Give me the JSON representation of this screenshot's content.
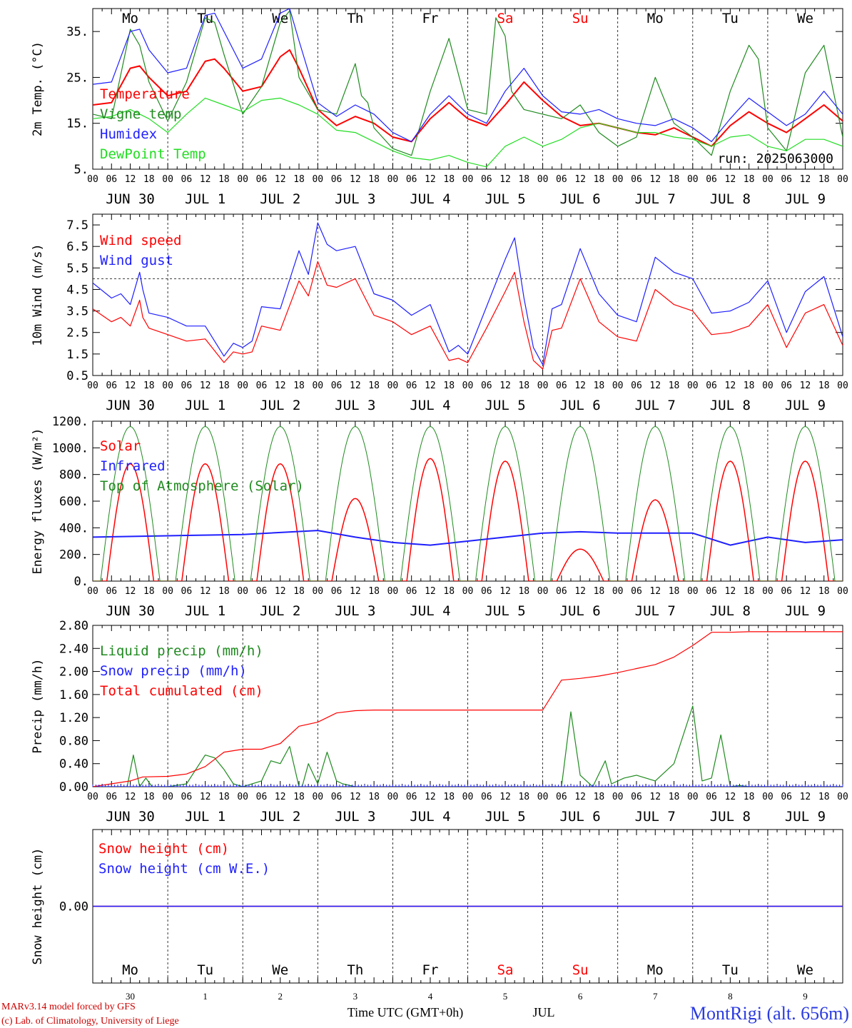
{
  "colors": {
    "red": "#ff0000",
    "green": "#1f8a1f",
    "blue": "#1f1fff",
    "lightgreen": "#22dd22",
    "weekend": "#ff0000",
    "text": "#000000"
  },
  "days_of_week": [
    "Mo",
    "Tu",
    "We",
    "Th",
    "Fr",
    "Sa",
    "Su",
    "Mo",
    "Tu",
    "We"
  ],
  "weekend_index": [
    5,
    6
  ],
  "date_labels": [
    "JUN 30",
    "JUL  1",
    "JUL  2",
    "JUL  3",
    "JUL  4",
    "JUL  5",
    "JUL  6",
    "JUL  7",
    "JUL  8",
    "JUL  9"
  ],
  "hour_labels": [
    "00",
    "06",
    "12",
    "18"
  ],
  "final_hour": "00",
  "day_numbers": [
    "30",
    "1",
    "2",
    "3",
    "4",
    "5",
    "6",
    "7",
    "8",
    "9"
  ],
  "run_label": "run: 2025063000",
  "footer": {
    "left1": "MARv3.14 model forced by GFS",
    "left2": "(c) Lab. of Climatology, University of Liege",
    "xtitle": "Time UTC (GMT+0h)",
    "month": "JUL",
    "station": "MontRigi (alt. 656m)"
  },
  "chart_data": [
    {
      "type": "line",
      "ylabel": "2m Temp. (°C)",
      "ylim": [
        5,
        40
      ],
      "yticks": [
        "5.",
        "15.",
        "25.",
        "35."
      ],
      "x_unit": "hours since 00 UTC JUN 30",
      "series": [
        {
          "name": "Temperature",
          "color": "red",
          "x": [
            0,
            6,
            12,
            15,
            18,
            24,
            30,
            36,
            39,
            42,
            48,
            54,
            60,
            63,
            66,
            72,
            78,
            84,
            90,
            96,
            102,
            108,
            114,
            120,
            126,
            132,
            138,
            144,
            150,
            156,
            162,
            168,
            174,
            180,
            186,
            192,
            198,
            204,
            210,
            216,
            222,
            228,
            234,
            240
          ],
          "y": [
            19,
            19.5,
            27,
            27.5,
            25,
            21,
            22,
            28.5,
            29,
            27,
            22,
            23,
            29.5,
            31,
            27,
            18,
            14.5,
            16.5,
            15,
            12,
            11,
            16,
            19.5,
            16,
            14.5,
            19,
            24,
            20,
            16.5,
            14.5,
            15,
            14,
            13,
            12.5,
            14,
            12,
            10,
            14.5,
            17.5,
            15,
            13,
            16,
            19,
            15.5
          ]
        },
        {
          "name": "Vigne temp",
          "color": "green",
          "x": [
            0,
            6,
            12,
            15,
            18,
            24,
            30,
            36,
            39,
            42,
            48,
            54,
            60,
            63,
            66,
            72,
            78,
            84,
            86,
            88,
            90,
            96,
            102,
            108,
            114,
            120,
            126,
            129,
            132,
            134,
            138,
            144,
            150,
            156,
            162,
            168,
            174,
            180,
            186,
            192,
            198,
            204,
            210,
            213,
            216,
            222,
            228,
            234,
            240
          ],
          "y": [
            17,
            16,
            35.5,
            32,
            24,
            15.5,
            24,
            38,
            37,
            30,
            17,
            23,
            37,
            39.5,
            25,
            18,
            17,
            28,
            21,
            19.5,
            14,
            9.5,
            8,
            22,
            33.5,
            18,
            17,
            38,
            34,
            22,
            18,
            17,
            16,
            19,
            13,
            10,
            12,
            25,
            15,
            12,
            8,
            22,
            32,
            29,
            14,
            9,
            26,
            32,
            12
          ]
        },
        {
          "name": "Humidex",
          "color": "blue",
          "x": [
            0,
            6,
            12,
            15,
            18,
            24,
            30,
            36,
            39,
            42,
            48,
            54,
            60,
            63,
            66,
            72,
            78,
            84,
            90,
            96,
            102,
            108,
            114,
            120,
            126,
            132,
            138,
            144,
            150,
            156,
            162,
            168,
            174,
            180,
            186,
            192,
            198,
            204,
            210,
            216,
            222,
            228,
            234,
            240
          ],
          "y": [
            23.5,
            24,
            35,
            35.5,
            31,
            26,
            27,
            38.5,
            39,
            35,
            27,
            29,
            39,
            40,
            33,
            19.5,
            16.5,
            19,
            17,
            13,
            11,
            17,
            21,
            17,
            15,
            22,
            27,
            21,
            17.5,
            17,
            18,
            16,
            15,
            14.5,
            16,
            14,
            11,
            16,
            20.5,
            17.5,
            14.5,
            17,
            22,
            17
          ]
        },
        {
          "name": "DewPoint Temp",
          "color": "lightgreen",
          "x": [
            0,
            6,
            12,
            18,
            24,
            30,
            36,
            42,
            48,
            54,
            60,
            66,
            72,
            78,
            84,
            90,
            96,
            102,
            108,
            114,
            120,
            126,
            132,
            138,
            144,
            150,
            156,
            162,
            168,
            174,
            180,
            186,
            192,
            198,
            204,
            210,
            216,
            222,
            228,
            234,
            240
          ],
          "y": [
            16,
            16.5,
            18,
            16,
            13,
            17,
            20.5,
            19,
            17.5,
            20,
            20.5,
            19,
            17,
            13.5,
            13,
            11,
            9,
            7.5,
            7,
            8,
            6.5,
            5.5,
            10,
            12,
            10,
            11.5,
            14,
            15,
            14,
            13,
            13,
            12,
            11.5,
            10,
            12,
            12.5,
            10,
            9,
            11.5,
            11.5,
            10
          ]
        }
      ]
    },
    {
      "type": "line",
      "ylabel": "10m Wind (m/s)",
      "ylim": [
        0.5,
        8
      ],
      "yticks": [
        "0.5",
        "1.5",
        "2.5",
        "3.5",
        "4.5",
        "5.5",
        "6.5",
        "7.5"
      ],
      "reference_line": 5,
      "x_unit": "hours since 00 UTC JUN 30",
      "series": [
        {
          "name": "Wind speed",
          "color": "red",
          "x": [
            0,
            6,
            9,
            12,
            15,
            16,
            18,
            24,
            30,
            36,
            42,
            45,
            48,
            51,
            54,
            60,
            66,
            69,
            72,
            75,
            78,
            84,
            90,
            96,
            102,
            108,
            114,
            117,
            120,
            126,
            132,
            135,
            138,
            141,
            144,
            147,
            150,
            156,
            162,
            168,
            174,
            180,
            186,
            192,
            198,
            204,
            210,
            216,
            222,
            228,
            234,
            240
          ],
          "y": [
            3.6,
            3,
            3.2,
            2.8,
            4,
            3.2,
            2.7,
            2.4,
            2.1,
            2.2,
            1.1,
            1.6,
            1.5,
            1.6,
            2.8,
            2.6,
            4.9,
            4.2,
            5.8,
            4.7,
            4.6,
            5,
            3.3,
            3,
            2.4,
            2.8,
            1.2,
            1.3,
            1.1,
            2.7,
            4.4,
            5.3,
            3,
            1.2,
            0.8,
            2.6,
            2.7,
            5,
            3,
            2.3,
            2.1,
            4.5,
            3.8,
            3.5,
            2.4,
            2.5,
            2.8,
            3.8,
            1.8,
            3.4,
            3.8,
            1.9
          ]
        },
        {
          "name": "Wind gust",
          "color": "blue",
          "x": [
            0,
            6,
            9,
            12,
            15,
            16,
            18,
            24,
            30,
            36,
            42,
            45,
            48,
            51,
            54,
            60,
            66,
            69,
            72,
            75,
            78,
            84,
            90,
            96,
            102,
            108,
            114,
            117,
            120,
            126,
            132,
            135,
            138,
            141,
            144,
            147,
            150,
            156,
            162,
            168,
            174,
            180,
            186,
            192,
            198,
            204,
            210,
            216,
            222,
            228,
            234,
            240
          ],
          "y": [
            4.8,
            4.1,
            4.3,
            3.8,
            5.3,
            4.5,
            3.4,
            3.2,
            2.8,
            2.8,
            1.4,
            2.0,
            1.8,
            2.1,
            3.7,
            3.6,
            6.3,
            5.2,
            7.6,
            6.6,
            6.3,
            6.5,
            4.3,
            4.0,
            3.3,
            3.8,
            1.6,
            1.9,
            1.5,
            3.7,
            5.9,
            6.9,
            4.1,
            1.8,
            1.0,
            3.6,
            3.8,
            6.4,
            4.3,
            3.3,
            3.0,
            6.0,
            5.3,
            5.0,
            3.4,
            3.5,
            3.9,
            4.9,
            2.5,
            4.4,
            5.1,
            2.3
          ]
        }
      ]
    },
    {
      "type": "line",
      "ylabel": "Energy fluxes (W/m²)",
      "ylim": [
        0,
        1200
      ],
      "yticks": [
        "0.",
        "200.",
        "400.",
        "600.",
        "800.",
        "1000.",
        "1200."
      ],
      "x_unit": "hours since 00 UTC JUN 30",
      "series": [
        {
          "name": "Solar",
          "color": "red",
          "daily_peaks": [
            880,
            880,
            880,
            620,
            920,
            900,
            240,
            610,
            900,
            900
          ]
        },
        {
          "name": "Infrared",
          "color": "blue",
          "x": [
            0,
            24,
            48,
            72,
            84,
            96,
            108,
            120,
            132,
            144,
            156,
            168,
            180,
            192,
            204,
            216,
            228,
            240
          ],
          "y": [
            330,
            340,
            350,
            380,
            330,
            290,
            270,
            300,
            330,
            360,
            370,
            360,
            360,
            360,
            270,
            330,
            290,
            310
          ]
        },
        {
          "name": "Top of Atmosphere (Solar)",
          "color": "green",
          "daily_peak": 1160
        }
      ]
    },
    {
      "type": "line",
      "ylabel": "Precip (mm/h)",
      "ylim": [
        0,
        2.8
      ],
      "yticks": [
        "0.00",
        "0.40",
        "0.80",
        "1.20",
        "1.60",
        "2.00",
        "2.40",
        "2.80"
      ],
      "x_unit": "hours since 00 UTC JUN 30",
      "series": [
        {
          "name": "Liquid precip (mm/h)",
          "color": "green",
          "x": [
            0,
            11,
            13,
            15,
            17,
            19,
            21,
            24,
            30,
            36,
            39,
            42,
            45,
            48,
            54,
            57,
            60,
            63,
            66,
            67,
            69,
            72,
            75,
            78,
            80,
            84,
            90,
            144,
            150,
            153,
            156,
            160,
            164,
            166,
            170,
            174,
            180,
            186,
            192,
            195,
            198,
            201,
            204,
            207,
            210,
            240
          ],
          "y": [
            0,
            0,
            0.55,
            0,
            0.15,
            0,
            0,
            0,
            0.05,
            0.55,
            0.5,
            0.3,
            0.05,
            0,
            0.1,
            0.45,
            0.4,
            0.7,
            0,
            0,
            0.4,
            0.05,
            0.6,
            0.1,
            0.05,
            0,
            0,
            0,
            0,
            1.3,
            0.2,
            0,
            0.45,
            0.05,
            0.15,
            0.2,
            0.1,
            0.4,
            1.4,
            0.1,
            0.15,
            0.9,
            0,
            0.02,
            0,
            0
          ]
        },
        {
          "name": "Snow precip (mm/h)",
          "color": "blue",
          "x": [
            0,
            240
          ],
          "y": [
            0,
            0
          ]
        },
        {
          "name": "Total cumulated (cm)",
          "color": "red",
          "x": [
            0,
            12,
            16,
            24,
            30,
            36,
            42,
            48,
            54,
            60,
            66,
            72,
            78,
            84,
            90,
            96,
            132,
            144,
            150,
            156,
            162,
            168,
            174,
            180,
            186,
            192,
            198,
            204,
            210,
            216,
            228,
            240
          ],
          "y": [
            0,
            0.1,
            0.17,
            0.18,
            0.22,
            0.35,
            0.6,
            0.65,
            0.65,
            0.75,
            1.05,
            1.12,
            1.28,
            1.32,
            1.33,
            1.33,
            1.33,
            1.33,
            1.85,
            1.88,
            1.92,
            1.98,
            2.05,
            2.12,
            2.25,
            2.45,
            2.68,
            2.68,
            2.69,
            2.69,
            2.69,
            2.69
          ]
        }
      ]
    },
    {
      "type": "line",
      "ylabel": "Snow height (cm)",
      "yticks": [
        "0.00"
      ],
      "x_unit": "hours since 00 UTC JUN 30",
      "series": [
        {
          "name": "Snow height (cm)",
          "color": "red",
          "x": [
            0,
            240
          ],
          "y": [
            0,
            0
          ]
        },
        {
          "name": "Snow height (cm W.E.)",
          "color": "blue",
          "x": [
            0,
            240
          ],
          "y": [
            0,
            0
          ]
        }
      ]
    }
  ]
}
